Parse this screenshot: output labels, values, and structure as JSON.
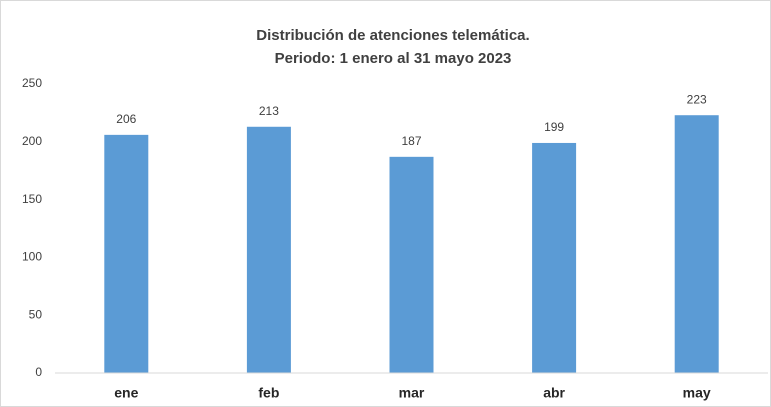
{
  "chart_data": {
    "type": "bar",
    "title": "Distribución de atenciones telemática.",
    "subtitle": "Periodo: 1 enero al 31 mayo 2023",
    "categories": [
      "ene",
      "feb",
      "mar",
      "abr",
      "may"
    ],
    "values": [
      206,
      213,
      187,
      199,
      223
    ],
    "color": "#5b9bd5",
    "ylim": [
      0,
      250
    ],
    "yticks": [
      0,
      50,
      100,
      150,
      200,
      250
    ],
    "grid": false,
    "data_labels": true
  }
}
